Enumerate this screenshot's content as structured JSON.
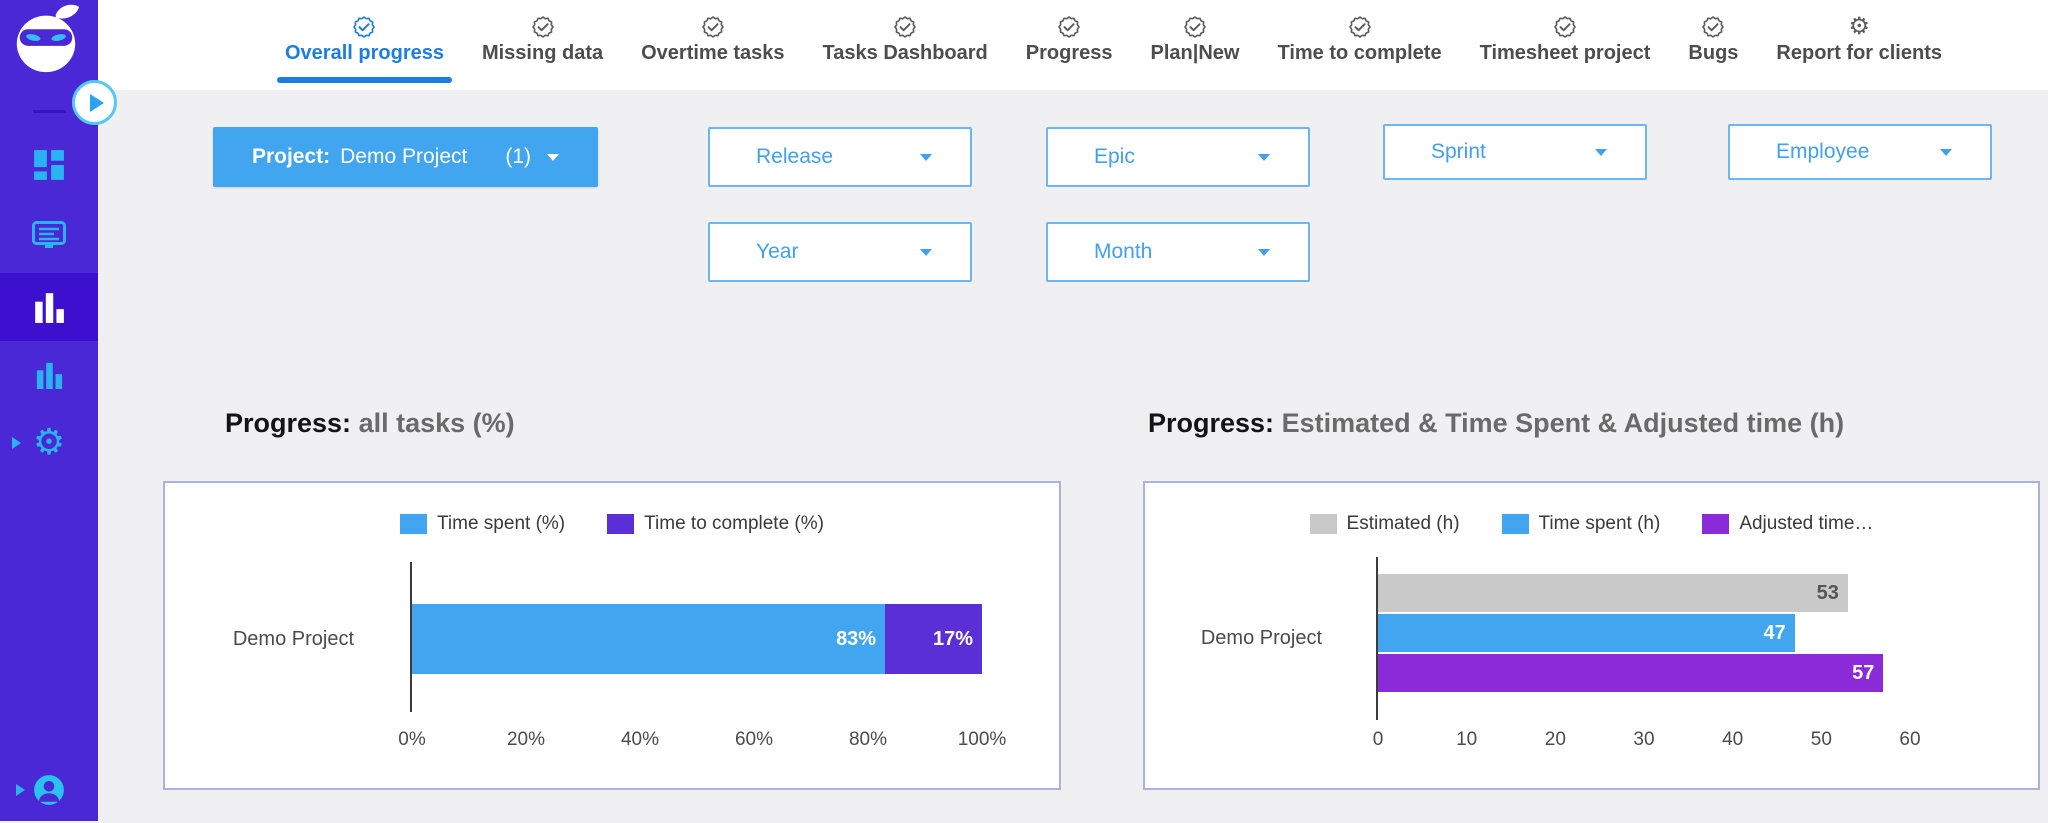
{
  "icons": {
    "gear": "⚙"
  },
  "sidebar": {
    "items": [
      {
        "icon": "dashboard-grid-icon"
      },
      {
        "icon": "board-icon"
      },
      {
        "icon": "bar-chart-icon",
        "active": true
      },
      {
        "icon": "bar-chart-2-icon"
      },
      {
        "icon": "settings-gear-icon"
      },
      {
        "icon": "user-account-icon"
      }
    ]
  },
  "tabs": [
    {
      "label": "Overall progress",
      "icon": "seal-check",
      "active": true
    },
    {
      "label": "Missing data",
      "icon": "seal-check",
      "active": false
    },
    {
      "label": "Overtime tasks",
      "icon": "seal-check",
      "active": false
    },
    {
      "label": "Tasks Dashboard",
      "icon": "seal-check",
      "active": false
    },
    {
      "label": "Progress",
      "icon": "seal-check",
      "active": false
    },
    {
      "label": "Plan|New",
      "icon": "seal-check",
      "active": false
    },
    {
      "label": "Time to complete",
      "icon": "seal-check",
      "active": false
    },
    {
      "label": "Timesheet project",
      "icon": "seal-check",
      "active": false
    },
    {
      "label": "Bugs",
      "icon": "seal-check",
      "active": false
    },
    {
      "label": "Report for clients",
      "icon": "gear",
      "active": false
    }
  ],
  "filters": {
    "project_label": "Project:",
    "project_value": "Demo Project",
    "project_count": "(1)",
    "dropdowns": {
      "release": "Release",
      "epic": "Epic",
      "sprint": "Sprint",
      "employee": "Employee",
      "year": "Year",
      "month": "Month"
    }
  },
  "section_titles": {
    "left_prefix": "Progress:",
    "left_rest": "all tasks (%)",
    "right_prefix": "Progress:",
    "right_rest": "Estimated & Time Spent & Adjusted time (h)"
  },
  "chart_data": [
    {
      "type": "bar",
      "orientation": "horizontal",
      "stacked": true,
      "title": "Progress: all tasks (%)",
      "categories": [
        "Demo Project"
      ],
      "series": [
        {
          "name": "Time spent (%)",
          "values": [
            83
          ],
          "data_labels": [
            "83%"
          ],
          "color": "#41a5f0",
          "label_color": "#ffffff"
        },
        {
          "name": "Time to complete (%)",
          "values": [
            17
          ],
          "data_labels": [
            "17%"
          ],
          "color": "#5b2fd6",
          "label_color": "#ffffff"
        }
      ],
      "xlim": [
        0,
        100
      ],
      "xticks": [
        "0%",
        "20%",
        "40%",
        "60%",
        "80%",
        "100%"
      ],
      "legend_position": "top",
      "grid": false
    },
    {
      "type": "bar",
      "orientation": "horizontal",
      "stacked": false,
      "title": "Progress: Estimated & Time Spent & Adjusted time (h)",
      "categories": [
        "Demo Project"
      ],
      "series": [
        {
          "name": "Estimated (h)",
          "values": [
            53
          ],
          "data_labels": [
            "53"
          ],
          "color": "#c9c9c9",
          "label_color": "#555555"
        },
        {
          "name": "Time spent (h)",
          "values": [
            47
          ],
          "data_labels": [
            "47"
          ],
          "color": "#41a5f0",
          "label_color": "#ffffff"
        },
        {
          "name": "Adjusted time…",
          "values": [
            57
          ],
          "data_labels": [
            "57"
          ],
          "color": "#8b2ad8",
          "label_color": "#ffffff"
        }
      ],
      "xlim": [
        0,
        60
      ],
      "xticks": [
        "0",
        "10",
        "20",
        "30",
        "40",
        "50",
        "60"
      ],
      "legend_position": "top",
      "grid": false
    }
  ],
  "colors": {
    "sidebar": "#4b28d5",
    "sidebar_active": "#3d10cf",
    "icon_blue": "#29b3f0",
    "accent_blue": "#41a5f0",
    "tab_active": "#1d7ee2",
    "page_bg": "#f0f0f2",
    "card_border": "#aab3dc"
  }
}
